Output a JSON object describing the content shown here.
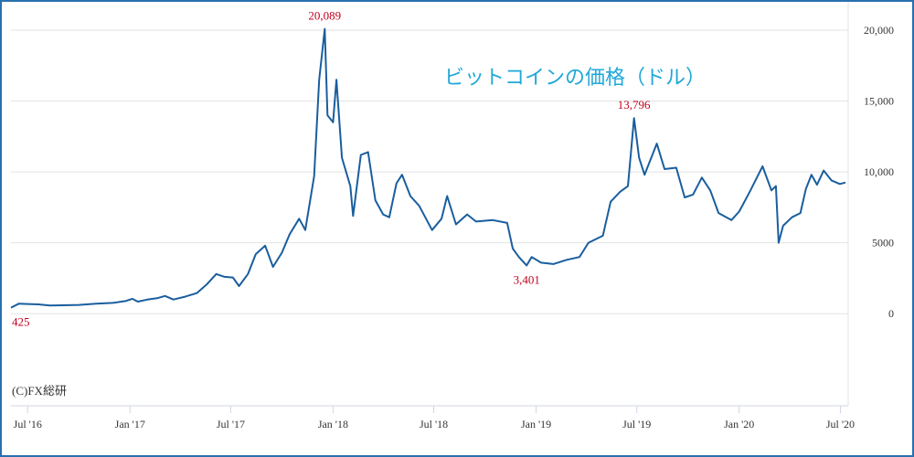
{
  "chart_data": {
    "type": "line",
    "title": "ビットコインの価格（ドル）",
    "credit": "(C)FX総研",
    "xlabel": "",
    "ylabel": "",
    "ylim": [
      -6500,
      22000
    ],
    "xlim": [
      "2016-06-01",
      "2020-07-15"
    ],
    "grid": true,
    "y_ticks": [
      {
        "value": 0,
        "label": "0"
      },
      {
        "value": 5000,
        "label": "5000"
      },
      {
        "value": 10000,
        "label": "10,000"
      },
      {
        "value": 15000,
        "label": "15,000"
      },
      {
        "value": 20000,
        "label": "20,000"
      }
    ],
    "x_ticks": [
      {
        "date": "2016-07-01",
        "label": "Jul '16"
      },
      {
        "date": "2017-01-01",
        "label": "Jan '17"
      },
      {
        "date": "2017-07-01",
        "label": "Jul '17"
      },
      {
        "date": "2018-01-01",
        "label": "Jan '18"
      },
      {
        "date": "2018-07-01",
        "label": "Jul '18"
      },
      {
        "date": "2019-01-01",
        "label": "Jan '19"
      },
      {
        "date": "2019-07-01",
        "label": "Jul '19"
      },
      {
        "date": "2020-01-01",
        "label": "Jan '20"
      },
      {
        "date": "2020-07-01",
        "label": "Jul '20"
      }
    ],
    "annotations": [
      {
        "date": "2016-06-01",
        "value": 425,
        "label": "425",
        "position": "below"
      },
      {
        "date": "2017-12-17",
        "value": 20089,
        "label": "20,089",
        "position": "above"
      },
      {
        "date": "2018-12-15",
        "value": 3401,
        "label": "3,401",
        "position": "below"
      },
      {
        "date": "2019-06-26",
        "value": 13796,
        "label": "13,796",
        "position": "above"
      }
    ],
    "series": [
      {
        "color": "#1a5e9e",
        "points": [
          [
            "2016-06-01",
            425
          ],
          [
            "2016-06-15",
            700
          ],
          [
            "2016-07-01",
            680
          ],
          [
            "2016-07-20",
            660
          ],
          [
            "2016-08-10",
            580
          ],
          [
            "2016-09-01",
            590
          ],
          [
            "2016-10-01",
            620
          ],
          [
            "2016-11-01",
            700
          ],
          [
            "2016-12-01",
            760
          ],
          [
            "2016-12-25",
            900
          ],
          [
            "2017-01-05",
            1050
          ],
          [
            "2017-01-15",
            850
          ],
          [
            "2017-02-01",
            990
          ],
          [
            "2017-02-20",
            1100
          ],
          [
            "2017-03-05",
            1250
          ],
          [
            "2017-03-20",
            1000
          ],
          [
            "2017-04-10",
            1200
          ],
          [
            "2017-05-01",
            1450
          ],
          [
            "2017-05-20",
            2100
          ],
          [
            "2017-06-05",
            2800
          ],
          [
            "2017-06-20",
            2600
          ],
          [
            "2017-07-05",
            2550
          ],
          [
            "2017-07-16",
            1950
          ],
          [
            "2017-08-01",
            2800
          ],
          [
            "2017-08-15",
            4200
          ],
          [
            "2017-09-01",
            4800
          ],
          [
            "2017-09-15",
            3300
          ],
          [
            "2017-10-01",
            4300
          ],
          [
            "2017-10-15",
            5600
          ],
          [
            "2017-11-01",
            6700
          ],
          [
            "2017-11-12",
            5900
          ],
          [
            "2017-11-28",
            9700
          ],
          [
            "2017-12-07",
            16500
          ],
          [
            "2017-12-17",
            20089
          ],
          [
            "2017-12-22",
            14000
          ],
          [
            "2018-01-01",
            13500
          ],
          [
            "2018-01-07",
            16500
          ],
          [
            "2018-01-17",
            11000
          ],
          [
            "2018-02-01",
            9000
          ],
          [
            "2018-02-06",
            6900
          ],
          [
            "2018-02-20",
            11200
          ],
          [
            "2018-03-05",
            11400
          ],
          [
            "2018-03-18",
            8000
          ],
          [
            "2018-04-01",
            7000
          ],
          [
            "2018-04-12",
            6800
          ],
          [
            "2018-04-25",
            9200
          ],
          [
            "2018-05-05",
            9800
          ],
          [
            "2018-05-20",
            8300
          ],
          [
            "2018-06-05",
            7600
          ],
          [
            "2018-06-28",
            5900
          ],
          [
            "2018-07-15",
            6700
          ],
          [
            "2018-07-25",
            8300
          ],
          [
            "2018-08-10",
            6300
          ],
          [
            "2018-08-30",
            7000
          ],
          [
            "2018-09-15",
            6500
          ],
          [
            "2018-10-15",
            6600
          ],
          [
            "2018-11-10",
            6400
          ],
          [
            "2018-11-20",
            4600
          ],
          [
            "2018-12-01",
            4000
          ],
          [
            "2018-12-15",
            3401
          ],
          [
            "2018-12-24",
            4000
          ],
          [
            "2019-01-10",
            3600
          ],
          [
            "2019-02-01",
            3500
          ],
          [
            "2019-02-25",
            3800
          ],
          [
            "2019-03-20",
            4000
          ],
          [
            "2019-04-05",
            5000
          ],
          [
            "2019-05-01",
            5500
          ],
          [
            "2019-05-15",
            7900
          ],
          [
            "2019-06-01",
            8600
          ],
          [
            "2019-06-15",
            9000
          ],
          [
            "2019-06-26",
            13796
          ],
          [
            "2019-07-05",
            11000
          ],
          [
            "2019-07-15",
            9800
          ],
          [
            "2019-08-06",
            12000
          ],
          [
            "2019-08-20",
            10200
          ],
          [
            "2019-09-10",
            10300
          ],
          [
            "2019-09-25",
            8200
          ],
          [
            "2019-10-10",
            8400
          ],
          [
            "2019-10-26",
            9600
          ],
          [
            "2019-11-10",
            8700
          ],
          [
            "2019-11-25",
            7100
          ],
          [
            "2019-12-18",
            6600
          ],
          [
            "2020-01-01",
            7200
          ],
          [
            "2020-01-20",
            8600
          ],
          [
            "2020-02-12",
            10400
          ],
          [
            "2020-02-28",
            8700
          ],
          [
            "2020-03-07",
            9000
          ],
          [
            "2020-03-12",
            5000
          ],
          [
            "2020-03-20",
            6200
          ],
          [
            "2020-04-05",
            6800
          ],
          [
            "2020-04-20",
            7100
          ],
          [
            "2020-04-30",
            8800
          ],
          [
            "2020-05-10",
            9800
          ],
          [
            "2020-05-20",
            9100
          ],
          [
            "2020-06-01",
            10100
          ],
          [
            "2020-06-15",
            9400
          ],
          [
            "2020-06-30",
            9150
          ],
          [
            "2020-07-10",
            9250
          ]
        ]
      }
    ]
  }
}
